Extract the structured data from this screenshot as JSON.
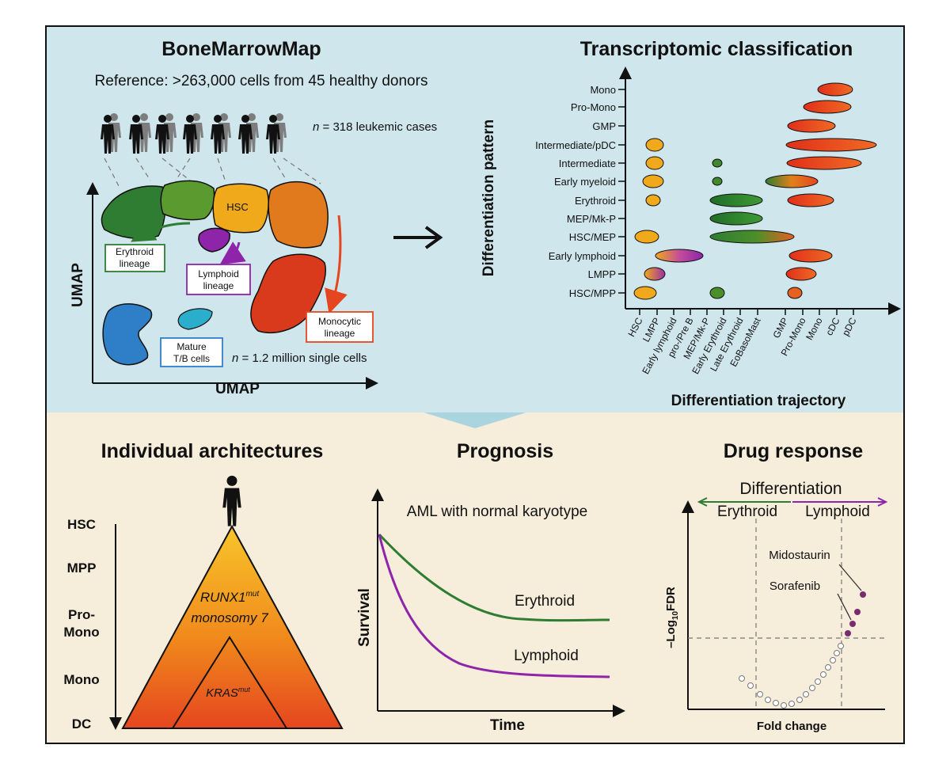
{
  "colors": {
    "top_bg": "#cfe6ec",
    "bottom_bg": "#f6eddb",
    "erythroid": "#2e7d32",
    "lymphoid": "#8e24aa",
    "monocytic": "#e5461f",
    "hsc": "#f0a91a",
    "mature": "#2f7fc8"
  },
  "bonemarrow": {
    "title": "BoneMarrowMap",
    "reference": "Reference: >263,000 cells from 45 healthy donors",
    "n_cases_prefix": "n",
    "n_cases_text": " = 318 leukemic cases",
    "n_cells_prefix": "n",
    "n_cells_text": " = 1.2 million single cells",
    "axis_x": "UMAP",
    "axis_y": "UMAP",
    "hsc_label": "HSC",
    "erythroid_label": [
      "Erythroid",
      "lineage"
    ],
    "lymphoid_label": [
      "Lymphoid",
      "lineage"
    ],
    "monocytic_label": [
      "Monocytic",
      "lineage"
    ],
    "mature_label": [
      "Mature",
      "T/B cells"
    ]
  },
  "classification": {
    "title": "Transcriptomic classification",
    "y_axis_title": "Differentiation pattern",
    "x_axis_title": "Differentiation trajectory",
    "y_labels": [
      "Mono",
      "Pro-Mono",
      "GMP",
      "Intermediate/pDC",
      "Intermediate",
      "Early myeloid",
      "Erythroid",
      "MEP/Mk-P",
      "HSC/MEP",
      "Early lymphoid",
      "LMPP",
      "HSC/MPP"
    ],
    "x_labels": [
      "HSC",
      "LMPP",
      "Early lymphoid",
      "pro-/Pre B",
      "MEP/Mk-P",
      "Early Erythroid",
      "Late Erythroid",
      "EoBasoMast",
      "GMP",
      "Pro-Mono",
      "Mono",
      "cDC",
      "pDC"
    ]
  },
  "architectures": {
    "title": "Individual architectures",
    "levels": [
      "HSC",
      "MPP",
      "Pro-\nMono",
      "Mono",
      "DC"
    ],
    "level_lines": [
      [
        "HSC"
      ],
      [
        "MPP"
      ],
      [
        "Pro-",
        "Mono"
      ],
      [
        "Mono"
      ],
      [
        "DC"
      ]
    ],
    "outer_mut": "RUNX1",
    "outer_sup": "mut",
    "outer_line2": "monosomy 7",
    "inner_mut": "KRAS",
    "inner_sup": "mut"
  },
  "prognosis": {
    "title": "Prognosis",
    "subtitle": "AML with normal karyotype",
    "y_label": "Survival",
    "x_label": "Time",
    "series": [
      {
        "name": "Erythroid",
        "color": "#2e7d32"
      },
      {
        "name": "Lymphoid",
        "color": "#8e24aa"
      }
    ]
  },
  "drug": {
    "title": "Drug response",
    "differentiation": "Differentiation",
    "left": "Erythroid",
    "right": "Lymphoid",
    "y_label_pre": "–Log",
    "y_label_sub": "10",
    "y_label_post": "FDR",
    "x_label": "Fold change",
    "drug1": "Midostaurin",
    "drug2": "Sorafenib"
  }
}
